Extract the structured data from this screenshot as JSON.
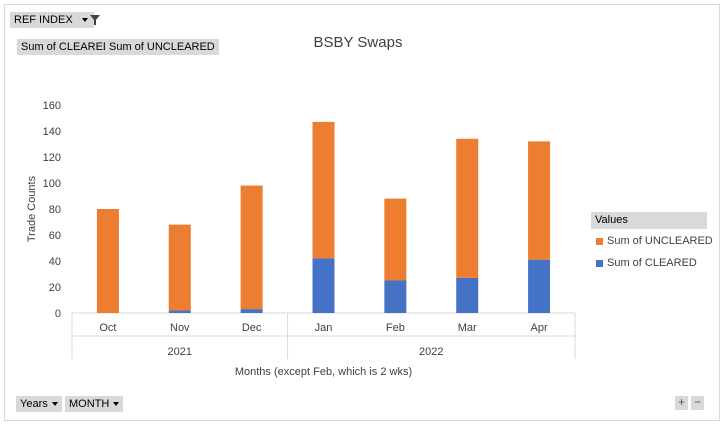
{
  "filters": {
    "report_filter_label": "REF INDEX",
    "value_buttons": [
      "Sum of CLEARED",
      "Sum of UNCLEARED"
    ],
    "axis_buttons": [
      "Years",
      "MONTH"
    ]
  },
  "legend": {
    "title": "Values",
    "items": [
      {
        "label": "Sum of UNCLEARED",
        "color": "#ed7d31"
      },
      {
        "label": "Sum of CLEARED",
        "color": "#4472c4"
      }
    ]
  },
  "zoom": {
    "plus": "+",
    "minus": "−"
  },
  "chart_data": {
    "type": "bar",
    "stacked": true,
    "title": "BSBY Swaps",
    "xlabel": "Months (except Feb, which is 2 wks)",
    "ylabel": "Trade Counts",
    "ylim": [
      0,
      160
    ],
    "yticks": [
      0,
      20,
      40,
      60,
      80,
      100,
      120,
      140,
      160
    ],
    "categories": [
      "Oct",
      "Nov",
      "Dec",
      "Jan",
      "Feb",
      "Mar",
      "Apr"
    ],
    "groups": [
      {
        "label": "2021",
        "categories": [
          "Oct",
          "Nov",
          "Dec"
        ]
      },
      {
        "label": "2022",
        "categories": [
          "Jan",
          "Feb",
          "Mar",
          "Apr"
        ]
      }
    ],
    "series": [
      {
        "name": "Sum of CLEARED",
        "color": "#4472c4",
        "values": [
          0,
          2,
          3,
          42,
          25,
          27,
          41
        ]
      },
      {
        "name": "Sum of UNCLEARED",
        "color": "#ed7d31",
        "values": [
          80,
          66,
          95,
          105,
          63,
          107,
          91
        ]
      }
    ],
    "grid": false,
    "legend_position": "right"
  }
}
